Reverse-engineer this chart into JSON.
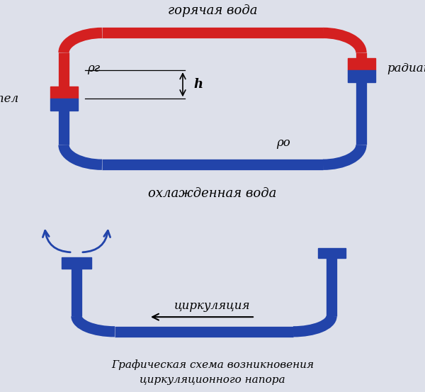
{
  "bg_color": "#dde0ea",
  "red_color": "#d42020",
  "blue_color": "#2244aa",
  "lw_pipe": 11,
  "title_line1": "Графическая схема возникновения",
  "title_line2": "циркуляционного напора",
  "label_hot": "горячая вода",
  "label_cold": "охлажденная вода",
  "label_kotel": "котел",
  "label_radiatory": "радиаторы",
  "label_rho_g": "ρг",
  "label_rho_o": "ρо",
  "label_h": "h",
  "label_cirk": "циркуляция"
}
